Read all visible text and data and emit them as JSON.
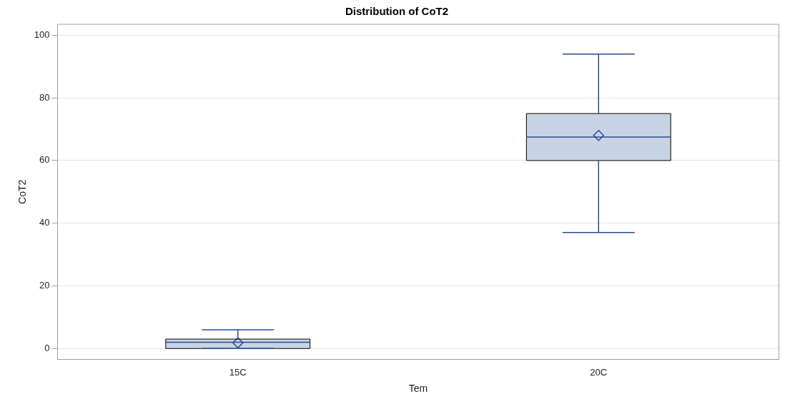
{
  "chart_data": {
    "type": "box",
    "title": "Distribution of CoT2",
    "xlabel": "Tem",
    "ylabel": "CoT2",
    "categories": [
      "15C",
      "20C"
    ],
    "series": [
      {
        "color": "#c8d3e4",
        "boxes": [
          {
            "low": 0,
            "q1": 0,
            "median": 2,
            "q3": 3,
            "high": 6,
            "mean": 1.8
          },
          {
            "low": 37,
            "q1": 60,
            "median": 67.5,
            "q3": 75,
            "high": 94,
            "mean": 68
          }
        ]
      }
    ],
    "ylim": [
      -3.5,
      103.5
    ],
    "yticks": [
      0,
      20,
      40,
      60,
      80,
      100
    ],
    "grid": "y",
    "marker": "diamond"
  }
}
